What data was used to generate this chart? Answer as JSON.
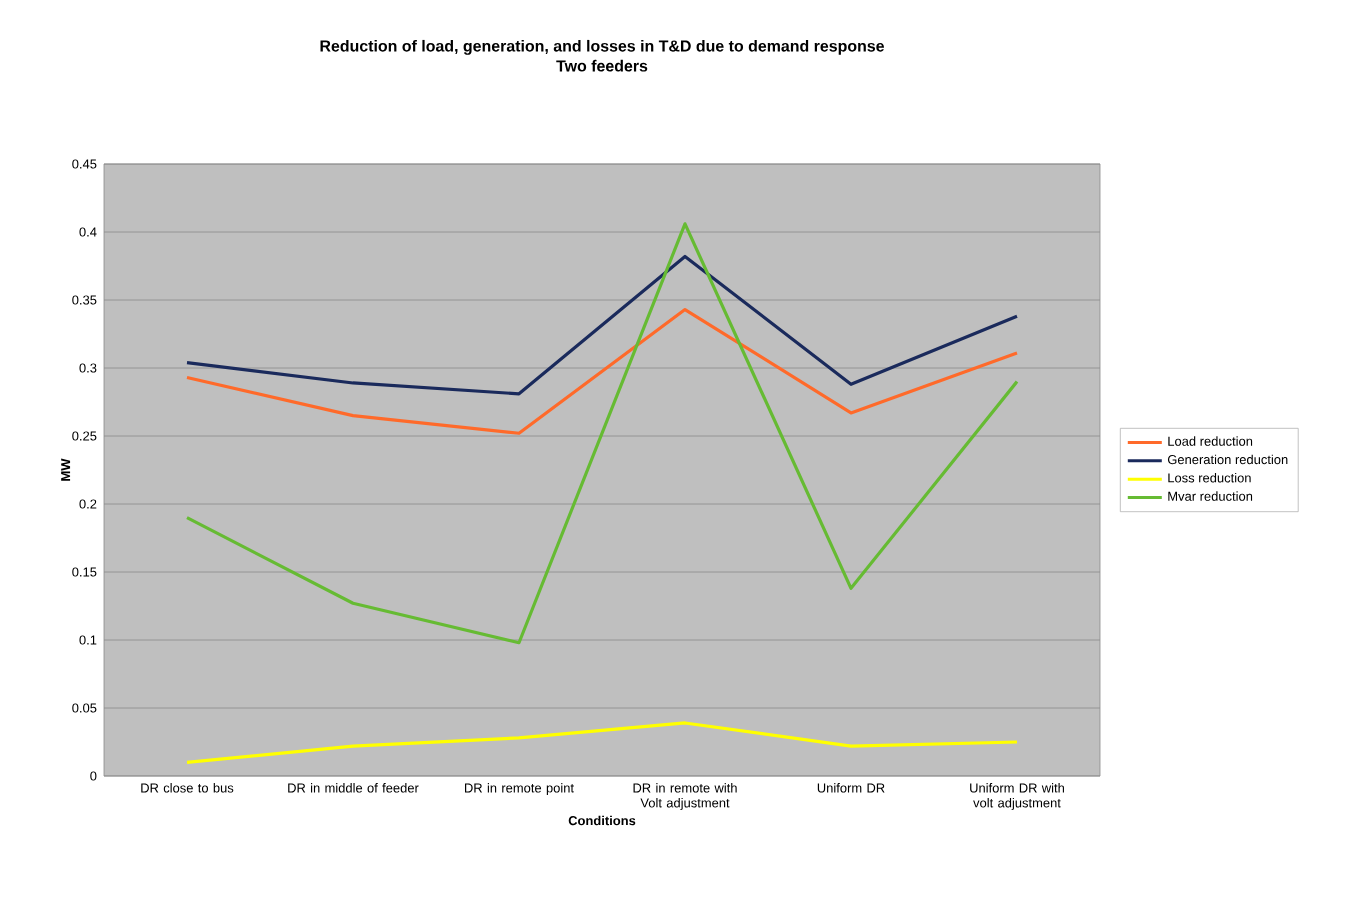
{
  "chart_data": {
    "type": "line",
    "title": "Reduction of load, generation, and losses in T&D due to demand response",
    "subtitle": "Two feeders",
    "xlabel": "Conditions",
    "ylabel": "MW",
    "categories": [
      "DR close to bus",
      "DR in middle of feeder",
      "DR in remote point",
      "DR in remote with Volt adjustment",
      "Uniform DR",
      "Uniform DR with volt adjustment"
    ],
    "series": [
      {
        "name": "Load reduction",
        "color": "#ff6a2a",
        "values": [
          0.293,
          0.265,
          0.252,
          0.343,
          0.267,
          0.311
        ]
      },
      {
        "name": "Generation reduction",
        "color": "#1a2a5c",
        "values": [
          0.304,
          0.289,
          0.281,
          0.382,
          0.288,
          0.338
        ]
      },
      {
        "name": "Loss reduction",
        "color": "#ffff00",
        "values": [
          0.01,
          0.022,
          0.028,
          0.039,
          0.022,
          0.025
        ]
      },
      {
        "name": "Mvar reduction",
        "color": "#66bb33",
        "values": [
          0.19,
          0.127,
          0.098,
          0.406,
          0.138,
          0.29
        ]
      }
    ],
    "ylim": [
      0,
      0.45
    ],
    "yticks": [
      0,
      0.05,
      0.1,
      0.15,
      0.2,
      0.25,
      0.3,
      0.35,
      0.4,
      0.45
    ],
    "grid": "y",
    "legend": "right",
    "marker": "none",
    "line_style": "solid"
  }
}
